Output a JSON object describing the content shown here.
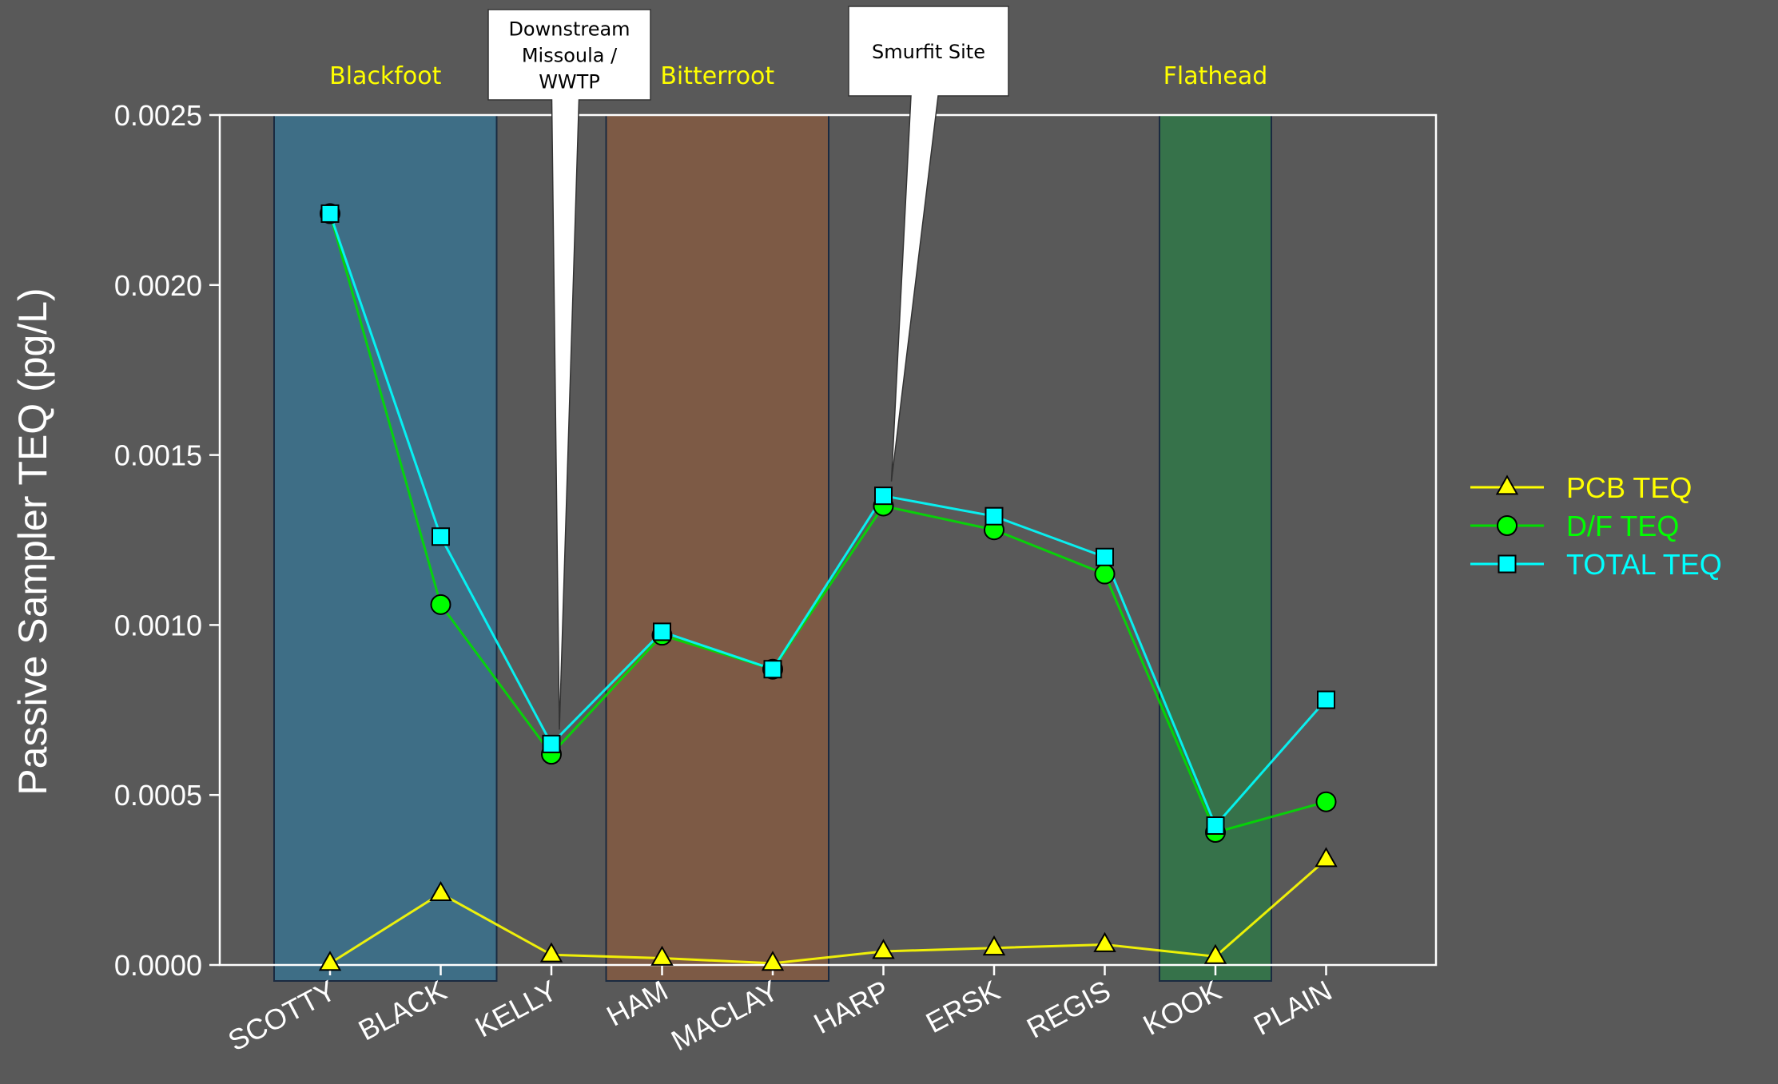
{
  "chart_data": {
    "type": "line",
    "ylabel": "Passive Sampler TEQ (pg/L)",
    "xlabel": "",
    "ylim": [
      0,
      0.0025
    ],
    "yticks": [
      0.0,
      0.0005,
      0.001,
      0.0015,
      0.002,
      0.0025
    ],
    "ytick_labels": [
      "0.0000",
      "0.0005",
      "0.0010",
      "0.0015",
      "0.0020",
      "0.0025"
    ],
    "categories": [
      "SCOTTY",
      "BLACK",
      "KELLY",
      "HAM",
      "MACLAY",
      "HARP",
      "ERSK",
      "REGIS",
      "KOOK",
      "PLAIN"
    ],
    "series": [
      {
        "name": "PCB TEQ",
        "marker": "triangle",
        "line_color": "#FFFF00",
        "marker_color": "#FFFF00",
        "values": [
          5e-06,
          0.00021,
          3e-05,
          2e-05,
          5e-06,
          4e-05,
          5e-05,
          6e-05,
          2.5e-05,
          0.00031
        ]
      },
      {
        "name": "D/F TEQ",
        "marker": "circle",
        "line_color": "#00DD00",
        "marker_color": "#00FF00",
        "values": [
          0.00221,
          0.00106,
          0.00062,
          0.00097,
          0.00087,
          0.00135,
          0.00128,
          0.00115,
          0.00039,
          0.00048
        ]
      },
      {
        "name": "TOTAL TEQ",
        "marker": "square",
        "line_color": "#00FFFF",
        "marker_color": "#00FFFF",
        "values": [
          0.00221,
          0.00126,
          0.00065,
          0.00098,
          0.00087,
          0.00138,
          0.00132,
          0.0012,
          0.00041,
          0.00078
        ]
      }
    ],
    "regions": [
      {
        "label": "Blackfoot",
        "from": 0,
        "to": 1,
        "color": "#3E6E86"
      },
      {
        "label": "Bitterroot",
        "from": 3,
        "to": 4,
        "color": "#7D5A45"
      },
      {
        "label": "Flathead",
        "from": 8,
        "to": 8,
        "color": "#36724A"
      }
    ],
    "region_label_color": "#FFFF00",
    "callouts": [
      {
        "lines": [
          "Downstream",
          "Missoula /",
          "WWTP"
        ],
        "target_category": 2
      },
      {
        "lines": [
          "Smurfit Site"
        ],
        "target_category": 5
      }
    ],
    "legend": {
      "position": "right"
    },
    "grid": false
  }
}
